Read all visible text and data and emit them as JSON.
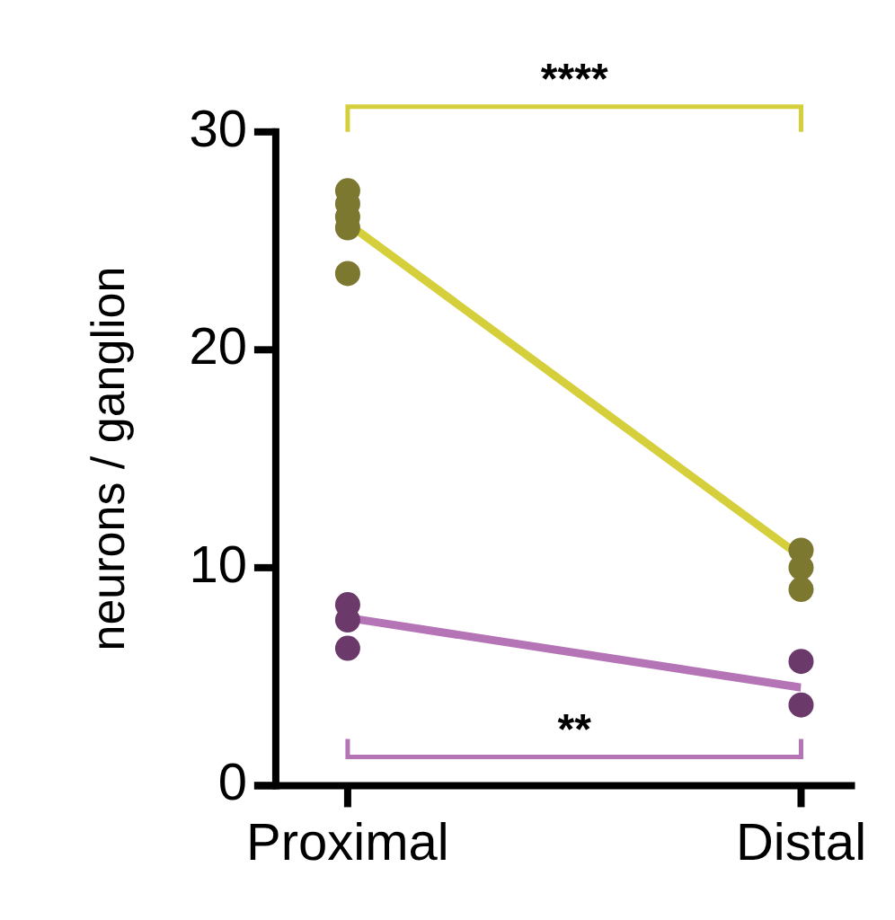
{
  "chart_data": {
    "type": "line",
    "ylabel": "neurons / ganglion",
    "categories": [
      "Proximal",
      "Distal"
    ],
    "ylim": [
      0,
      30
    ],
    "yticks": [
      0,
      10,
      20,
      30
    ],
    "grid": false,
    "legend": false,
    "marker": "none",
    "series": [
      {
        "color": "#d6cf3c",
        "values": [
          25.8,
          10.5
        ]
      },
      {
        "color": "#b574b5",
        "values": [
          7.7,
          4.5
        ]
      },
      {
        "type": "scatter",
        "color": "#7d7830",
        "marker": "circle",
        "x": [
          "Proximal",
          "Proximal",
          "Proximal",
          "Proximal",
          "Proximal",
          "Distal",
          "Distal",
          "Distal"
        ],
        "values": [
          27.3,
          26.7,
          26.1,
          25.6,
          23.5,
          10.8,
          10.0,
          9.0
        ]
      },
      {
        "type": "scatter",
        "color": "#6b3a6b",
        "marker": "circle",
        "x": [
          "Proximal",
          "Proximal",
          "Proximal",
          "Distal",
          "Distal"
        ],
        "values": [
          8.3,
          7.6,
          6.3,
          5.7,
          3.7
        ]
      }
    ],
    "annotations": [
      "****",
      "**"
    ]
  }
}
